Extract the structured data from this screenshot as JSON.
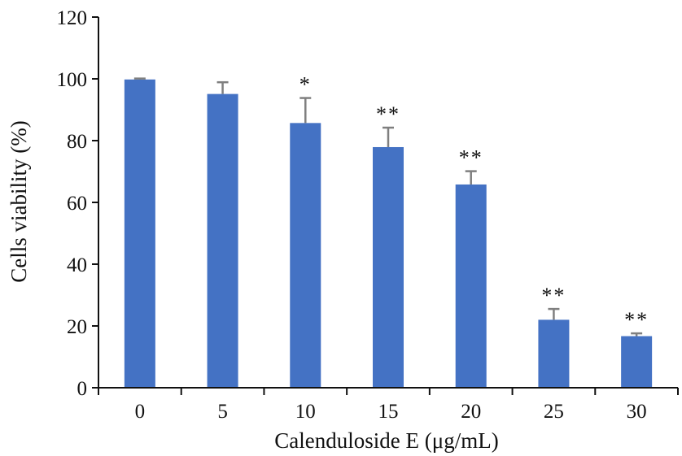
{
  "chart_data": {
    "type": "bar",
    "title": "",
    "xlabel": "Calenduloside E (μg/mL)",
    "ylabel": "Cells viability (%)",
    "categories": [
      "0",
      "5",
      "10",
      "15",
      "20",
      "25",
      "30"
    ],
    "values": [
      99.8,
      95.1,
      85.7,
      77.9,
      65.8,
      22.0,
      16.7
    ],
    "error": [
      0.3,
      3.8,
      8.1,
      6.3,
      4.3,
      3.5,
      0.9
    ],
    "significance": [
      "",
      "",
      "*",
      "**",
      "**",
      "**",
      "**"
    ],
    "ylim": [
      0,
      120
    ],
    "yticks": [
      "0",
      "20",
      "40",
      "60",
      "80",
      "100",
      "120"
    ],
    "grid": false,
    "legend": "none",
    "colors": {
      "bar": "#4472c4",
      "error_bar": "#7f7f7f",
      "axis": "#111111"
    }
  }
}
